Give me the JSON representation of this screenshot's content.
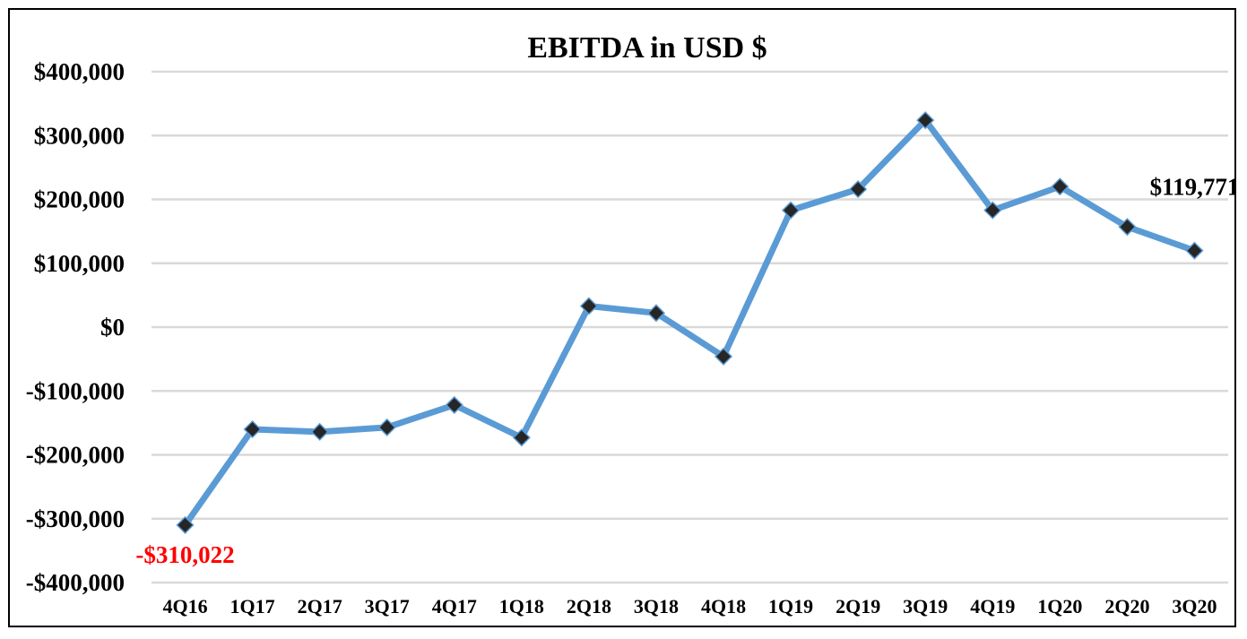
{
  "chart_data": {
    "type": "line",
    "title": "EBITDA in USD $",
    "xlabel": "",
    "ylabel": "",
    "categories": [
      "4Q16",
      "1Q17",
      "2Q17",
      "3Q17",
      "4Q17",
      "1Q18",
      "2Q18",
      "3Q18",
      "4Q18",
      "1Q19",
      "2Q19",
      "3Q19",
      "4Q19",
      "1Q20",
      "2Q20",
      "3Q20"
    ],
    "series": [
      {
        "values": [
          -310022,
          -160000,
          -164000,
          -157000,
          -122000,
          -173000,
          33000,
          22000,
          -46000,
          183000,
          216000,
          324000,
          183000,
          220000,
          157000,
          119771
        ],
        "color": "#5B9BD5",
        "marker": "diamond",
        "marker_color": "#262626"
      }
    ],
    "ylim": [
      -400000,
      400000
    ],
    "yticks": [
      400000,
      300000,
      200000,
      100000,
      0,
      -100000,
      -200000,
      -300000,
      -400000
    ],
    "ytick_labels": [
      "$400,000",
      "$300,000",
      "$200,000",
      "$100,000",
      "$0",
      "-$100,000",
      "-$200,000",
      "-$300,000",
      "-$400,000"
    ],
    "grid": true,
    "legend": "none",
    "data_labels": [
      {
        "index": 0,
        "text": "-$310,022",
        "color": "#FF0000",
        "placement": "below"
      },
      {
        "index": 15,
        "text": "$119,771",
        "color": "#000000",
        "placement": "above"
      }
    ]
  }
}
